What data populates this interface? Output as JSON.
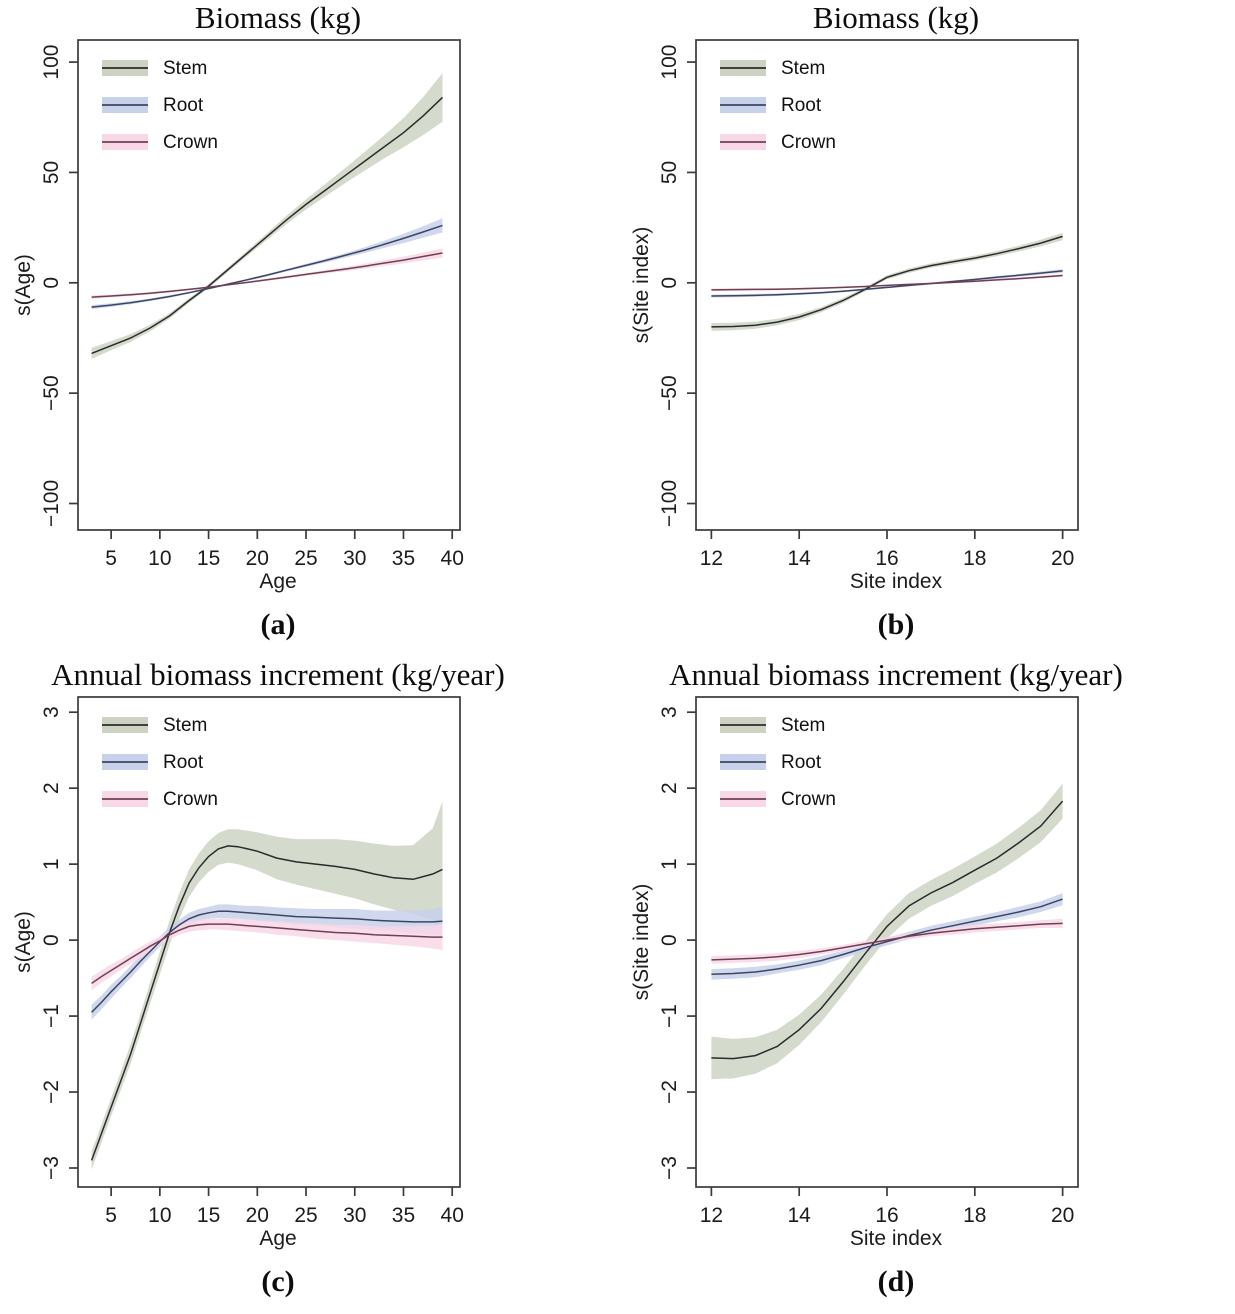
{
  "palette": {
    "Stem": {
      "band": "#cdd3c3",
      "line": "#2b2b2b"
    },
    "Root": {
      "band": "#c8d1ea",
      "line": "#3c4663"
    },
    "Crown": {
      "band": "#f8d7e7",
      "line": "#6e4152"
    }
  },
  "chart_data": [
    {
      "id": "a",
      "type": "line",
      "title": "Biomass (kg)",
      "xlabel": "Age",
      "ylabel": "s(Age)",
      "caption": "(a)",
      "xlim": [
        1.6,
        40.8
      ],
      "ylim": [
        -112,
        110
      ],
      "xticks": [
        5,
        10,
        15,
        20,
        25,
        30,
        35,
        40
      ],
      "xtick_labels": [
        "5",
        "10",
        "15",
        "20",
        "25",
        "30",
        "35",
        "40"
      ],
      "yticks": [
        -100,
        -50,
        0,
        50,
        100
      ],
      "ytick_labels": [
        "−100",
        "−50",
        "0",
        "50",
        "100"
      ],
      "grid": false,
      "legend": {
        "position": "top-left",
        "entries": [
          "Stem",
          "Root",
          "Crown"
        ]
      },
      "series": [
        {
          "name": "Stem",
          "x": [
            3,
            5,
            7,
            9,
            11,
            13,
            15,
            17,
            19,
            21,
            23,
            25,
            27,
            29,
            31,
            33,
            35,
            37,
            39
          ],
          "y": [
            -32,
            -28.5,
            -25,
            -20.5,
            -15,
            -8,
            -1.5,
            6,
            13.5,
            21,
            28.5,
            35.5,
            42,
            48.5,
            55,
            61.5,
            68,
            75.5,
            84
          ],
          "w": [
            2.5,
            2.1,
            1.8,
            1.5,
            1.2,
            1,
            0.9,
            1,
            1.2,
            1.5,
            1.9,
            2.3,
            2.8,
            3.4,
            4.2,
            5.2,
            6.6,
            8.6,
            11
          ]
        },
        {
          "name": "Root",
          "x": [
            3,
            5,
            7,
            9,
            11,
            13,
            15,
            17,
            19,
            21,
            23,
            25,
            27,
            29,
            31,
            33,
            35,
            37,
            39
          ],
          "y": [
            -11,
            -10.1,
            -9,
            -7.7,
            -6.2,
            -4.5,
            -2.6,
            -0.6,
            1.4,
            3.5,
            5.7,
            7.9,
            10.1,
            12.4,
            14.8,
            17.4,
            20.1,
            23,
            26
          ],
          "w": [
            0.9,
            0.8,
            0.7,
            0.6,
            0.55,
            0.45,
            0.4,
            0.4,
            0.45,
            0.5,
            0.6,
            0.7,
            0.85,
            1,
            1.3,
            1.65,
            2.1,
            2.6,
            3.2
          ]
        },
        {
          "name": "Crown",
          "x": [
            3,
            5,
            7,
            9,
            11,
            13,
            15,
            17,
            19,
            21,
            23,
            25,
            27,
            29,
            31,
            33,
            35,
            37,
            39
          ],
          "y": [
            -6.5,
            -6,
            -5.4,
            -4.7,
            -3.9,
            -3,
            -2,
            -0.9,
            0.2,
            1.4,
            2.6,
            3.8,
            5,
            6.2,
            7.5,
            8.9,
            10.3,
            11.9,
            13.5
          ],
          "w": [
            0.8,
            0.7,
            0.65,
            0.55,
            0.5,
            0.45,
            0.4,
            0.4,
            0.45,
            0.5,
            0.6,
            0.65,
            0.8,
            0.95,
            1.1,
            1.3,
            1.55,
            1.8,
            2.1
          ]
        }
      ]
    },
    {
      "id": "b",
      "type": "line",
      "title": "Biomass (kg)",
      "xlabel": "Site index",
      "ylabel": "s(Site index)",
      "caption": "(b)",
      "xlim": [
        11.65,
        20.35
      ],
      "ylim": [
        -112,
        110
      ],
      "xticks": [
        12,
        14,
        16,
        18,
        20
      ],
      "xtick_labels": [
        "12",
        "14",
        "16",
        "18",
        "20"
      ],
      "yticks": [
        -100,
        -50,
        0,
        50,
        100
      ],
      "ytick_labels": [
        "−100",
        "−50",
        "0",
        "50",
        "100"
      ],
      "grid": false,
      "legend": {
        "position": "top-left",
        "entries": [
          "Stem",
          "Root",
          "Crown"
        ]
      },
      "series": [
        {
          "name": "Stem",
          "x": [
            12,
            12.5,
            13,
            13.5,
            14,
            14.5,
            15,
            15.5,
            16,
            16.5,
            17,
            17.5,
            18,
            18.5,
            19,
            19.5,
            20
          ],
          "y": [
            -20,
            -19.8,
            -19.2,
            -17.8,
            -15.5,
            -12.2,
            -8,
            -3,
            2.5,
            5.5,
            7.8,
            9.5,
            11.2,
            13.2,
            15.5,
            18,
            21
          ],
          "w": [
            1.8,
            1.7,
            1.6,
            1.5,
            1.4,
            1.2,
            1.1,
            0.9,
            0.9,
            1,
            1,
            1.1,
            1.1,
            1.2,
            1.3,
            1.5,
            1.7
          ]
        },
        {
          "name": "Root",
          "x": [
            12,
            12.5,
            13,
            13.5,
            14,
            14.5,
            15,
            15.5,
            16,
            16.5,
            17,
            17.5,
            18,
            18.5,
            19,
            19.5,
            20
          ],
          "y": [
            -6,
            -5.9,
            -5.7,
            -5.4,
            -5,
            -4.5,
            -3.8,
            -3,
            -2.1,
            -1.2,
            -0.3,
            0.6,
            1.5,
            2.5,
            3.4,
            4.4,
            5.4
          ],
          "w": [
            0.7,
            0.7,
            0.65,
            0.6,
            0.55,
            0.5,
            0.5,
            0.45,
            0.45,
            0.45,
            0.5,
            0.5,
            0.55,
            0.6,
            0.65,
            0.7,
            0.8
          ]
        },
        {
          "name": "Crown",
          "x": [
            12,
            12.5,
            13,
            13.5,
            14,
            14.5,
            15,
            15.5,
            16,
            16.5,
            17,
            17.5,
            18,
            18.5,
            19,
            19.5,
            20
          ],
          "y": [
            -3.2,
            -3.1,
            -3,
            -2.9,
            -2.7,
            -2.4,
            -2.1,
            -1.7,
            -1.2,
            -0.75,
            -0.3,
            0.2,
            0.7,
            1.3,
            1.9,
            2.6,
            3.3
          ],
          "w": [
            0.6,
            0.6,
            0.55,
            0.5,
            0.5,
            0.45,
            0.45,
            0.4,
            0.4,
            0.4,
            0.45,
            0.45,
            0.5,
            0.5,
            0.55,
            0.6,
            0.65
          ]
        }
      ]
    },
    {
      "id": "c",
      "type": "line",
      "title": "Annual biomass increment (kg/year)",
      "xlabel": "Age",
      "ylabel": "s(Age)",
      "caption": "(c)",
      "xlim": [
        1.6,
        40.8
      ],
      "ylim": [
        -3.25,
        3.2
      ],
      "xticks": [
        5,
        10,
        15,
        20,
        25,
        30,
        35,
        40
      ],
      "xtick_labels": [
        "5",
        "10",
        "15",
        "20",
        "25",
        "30",
        "35",
        "40"
      ],
      "yticks": [
        -3,
        -2,
        -1,
        0,
        1,
        2,
        3
      ],
      "ytick_labels": [
        "−3",
        "−2",
        "−1",
        "0",
        "1",
        "2",
        "3"
      ],
      "grid": false,
      "legend": {
        "position": "top-left",
        "entries": [
          "Stem",
          "Root",
          "Crown"
        ]
      },
      "series": [
        {
          "name": "Stem",
          "x": [
            3,
            4,
            5,
            6,
            7,
            8,
            9,
            10,
            11,
            12,
            13,
            14,
            15,
            16,
            17,
            18,
            19,
            20,
            22,
            24,
            26,
            28,
            30,
            32,
            34,
            36,
            38,
            39
          ],
          "y": [
            -2.9,
            -2.55,
            -2.2,
            -1.85,
            -1.5,
            -1.1,
            -0.7,
            -0.3,
            0.1,
            0.45,
            0.75,
            0.95,
            1.1,
            1.2,
            1.24,
            1.23,
            1.2,
            1.17,
            1.08,
            1.03,
            1,
            0.97,
            0.93,
            0.87,
            0.82,
            0.8,
            0.87,
            0.93
          ],
          "w": [
            0.12,
            0.12,
            0.12,
            0.12,
            0.13,
            0.13,
            0.14,
            0.15,
            0.16,
            0.17,
            0.18,
            0.19,
            0.2,
            0.21,
            0.22,
            0.23,
            0.24,
            0.25,
            0.28,
            0.3,
            0.33,
            0.36,
            0.38,
            0.4,
            0.42,
            0.45,
            0.6,
            0.9
          ]
        },
        {
          "name": "Root",
          "x": [
            3,
            4,
            5,
            6,
            7,
            8,
            9,
            10,
            11,
            12,
            13,
            14,
            15,
            16,
            17,
            18,
            19,
            20,
            22,
            24,
            26,
            28,
            30,
            32,
            34,
            36,
            38,
            39
          ],
          "y": [
            -0.95,
            -0.82,
            -0.68,
            -0.55,
            -0.42,
            -0.28,
            -0.15,
            -0.02,
            0.1,
            0.2,
            0.28,
            0.33,
            0.36,
            0.38,
            0.38,
            0.37,
            0.36,
            0.35,
            0.33,
            0.31,
            0.3,
            0.29,
            0.28,
            0.26,
            0.25,
            0.24,
            0.24,
            0.25
          ],
          "w": [
            0.1,
            0.09,
            0.09,
            0.08,
            0.08,
            0.08,
            0.07,
            0.07,
            0.07,
            0.07,
            0.08,
            0.08,
            0.08,
            0.09,
            0.09,
            0.09,
            0.09,
            0.1,
            0.1,
            0.11,
            0.11,
            0.12,
            0.13,
            0.13,
            0.14,
            0.15,
            0.17,
            0.19
          ]
        },
        {
          "name": "Crown",
          "x": [
            3,
            4,
            5,
            6,
            7,
            8,
            9,
            10,
            11,
            12,
            13,
            14,
            15,
            16,
            17,
            18,
            19,
            20,
            22,
            24,
            26,
            28,
            30,
            32,
            34,
            36,
            38,
            39
          ],
          "y": [
            -0.57,
            -0.48,
            -0.4,
            -0.32,
            -0.24,
            -0.16,
            -0.08,
            -0.01,
            0.07,
            0.13,
            0.18,
            0.2,
            0.21,
            0.21,
            0.21,
            0.2,
            0.19,
            0.18,
            0.16,
            0.14,
            0.12,
            0.1,
            0.09,
            0.07,
            0.06,
            0.05,
            0.04,
            0.04
          ],
          "w": [
            0.09,
            0.08,
            0.08,
            0.07,
            0.07,
            0.07,
            0.06,
            0.06,
            0.06,
            0.06,
            0.07,
            0.07,
            0.07,
            0.07,
            0.08,
            0.08,
            0.08,
            0.08,
            0.09,
            0.09,
            0.1,
            0.1,
            0.11,
            0.11,
            0.12,
            0.13,
            0.15,
            0.17
          ]
        }
      ]
    },
    {
      "id": "d",
      "type": "line",
      "title": "Annual biomass increment (kg/year)",
      "xlabel": "Site index",
      "ylabel": "s(Site index)",
      "caption": "(d)",
      "xlim": [
        11.65,
        20.35
      ],
      "ylim": [
        -3.25,
        3.2
      ],
      "xticks": [
        12,
        14,
        16,
        18,
        20
      ],
      "xtick_labels": [
        "12",
        "14",
        "16",
        "18",
        "20"
      ],
      "yticks": [
        -3,
        -2,
        -1,
        0,
        1,
        2,
        3
      ],
      "ytick_labels": [
        "−3",
        "−2",
        "−1",
        "0",
        "1",
        "2",
        "3"
      ],
      "grid": false,
      "legend": {
        "position": "top-left",
        "entries": [
          "Stem",
          "Root",
          "Crown"
        ]
      },
      "series": [
        {
          "name": "Stem",
          "x": [
            12,
            12.5,
            13,
            13.5,
            14,
            14.5,
            15,
            15.5,
            16,
            16.5,
            17,
            17.5,
            18,
            18.5,
            19,
            19.5,
            20
          ],
          "y": [
            -1.55,
            -1.56,
            -1.52,
            -1.4,
            -1.18,
            -0.9,
            -0.55,
            -0.18,
            0.18,
            0.45,
            0.62,
            0.76,
            0.92,
            1.08,
            1.28,
            1.5,
            1.83
          ],
          "w": [
            0.28,
            0.26,
            0.24,
            0.22,
            0.2,
            0.18,
            0.17,
            0.16,
            0.16,
            0.17,
            0.17,
            0.18,
            0.18,
            0.19,
            0.2,
            0.21,
            0.23
          ]
        },
        {
          "name": "Root",
          "x": [
            12,
            12.5,
            13,
            13.5,
            14,
            14.5,
            15,
            15.5,
            16,
            16.5,
            17,
            17.5,
            18,
            18.5,
            19,
            19.5,
            20
          ],
          "y": [
            -0.45,
            -0.44,
            -0.42,
            -0.38,
            -0.33,
            -0.27,
            -0.19,
            -0.1,
            -0.02,
            0.06,
            0.13,
            0.19,
            0.25,
            0.31,
            0.37,
            0.44,
            0.54
          ],
          "w": [
            0.07,
            0.07,
            0.07,
            0.06,
            0.06,
            0.06,
            0.05,
            0.05,
            0.05,
            0.05,
            0.06,
            0.06,
            0.06,
            0.06,
            0.07,
            0.07,
            0.08
          ]
        },
        {
          "name": "Crown",
          "x": [
            12,
            12.5,
            13,
            13.5,
            14,
            14.5,
            15,
            15.5,
            16,
            16.5,
            17,
            17.5,
            18,
            18.5,
            19,
            19.5,
            20
          ],
          "y": [
            -0.26,
            -0.25,
            -0.24,
            -0.22,
            -0.19,
            -0.15,
            -0.1,
            -0.05,
            0,
            0.05,
            0.09,
            0.12,
            0.15,
            0.17,
            0.19,
            0.21,
            0.22
          ],
          "w": [
            0.05,
            0.05,
            0.05,
            0.05,
            0.05,
            0.04,
            0.04,
            0.04,
            0.04,
            0.04,
            0.04,
            0.05,
            0.05,
            0.05,
            0.05,
            0.05,
            0.06
          ]
        }
      ]
    }
  ]
}
